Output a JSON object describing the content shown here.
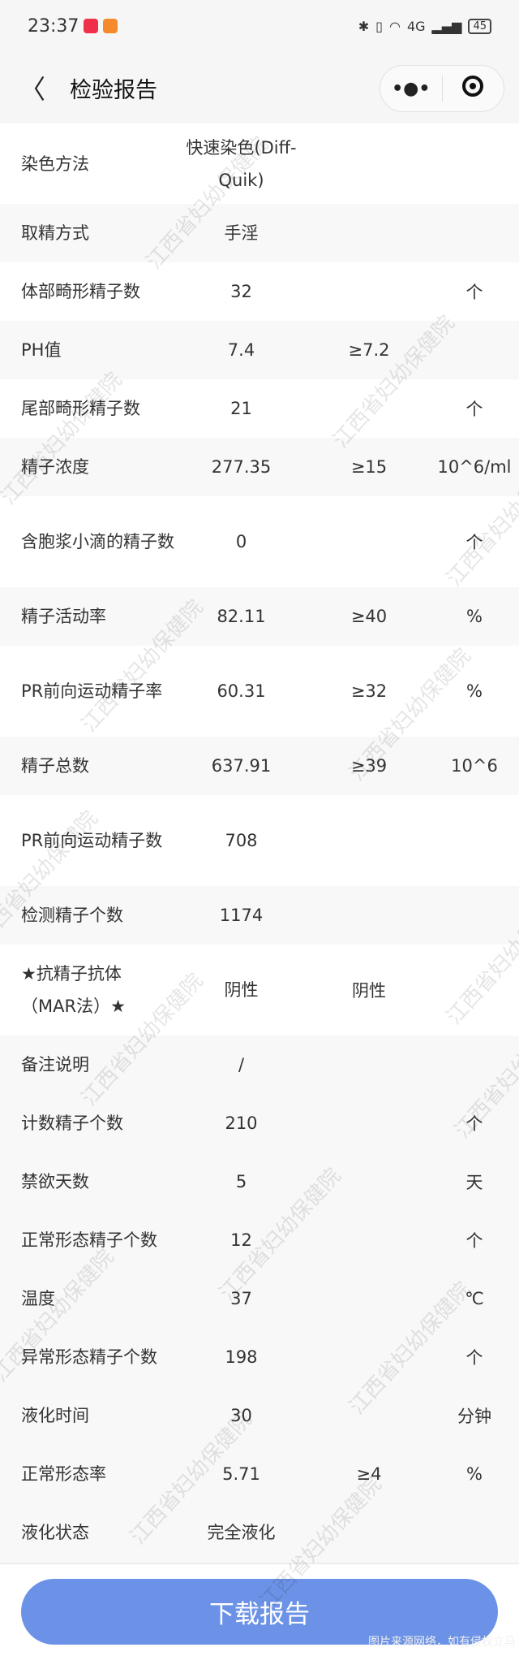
{
  "status_bar": {
    "time": "23:37",
    "battery": "45",
    "signal": "4G"
  },
  "nav": {
    "back_icon": "chevron-left-icon",
    "title": "检验报告",
    "more_icon": "more-dots-icon",
    "close_icon": "target-circle-icon"
  },
  "watermark": "江西省妇幼保健院",
  "rows": [
    {
      "name": "染色方法",
      "value": "快速染色(Diff-Quik)",
      "ref": "",
      "unit": ""
    },
    {
      "name": "取精方式",
      "value": "手淫",
      "ref": "",
      "unit": ""
    },
    {
      "name": "体部畸形精子数",
      "value": "32",
      "ref": "",
      "unit": "个"
    },
    {
      "name": "PH值",
      "value": "7.4",
      "ref": "≥7.2",
      "unit": ""
    },
    {
      "name": "尾部畸形精子数",
      "value": "21",
      "ref": "",
      "unit": "个"
    },
    {
      "name": "精子浓度",
      "value": "277.35",
      "ref": "≥15",
      "unit": "10^6/ml"
    },
    {
      "name": "含胞浆小滴的精子数",
      "value": "0",
      "ref": "",
      "unit": "个"
    },
    {
      "name": "精子活动率",
      "value": "82.11",
      "ref": "≥40",
      "unit": "%"
    },
    {
      "name": "PR前向运动精子率",
      "value": "60.31",
      "ref": "≥32",
      "unit": "%"
    },
    {
      "name": "精子总数",
      "value": "637.91",
      "ref": "≥39",
      "unit": "10^6"
    },
    {
      "name": "PR前向运动精子数",
      "value": "708",
      "ref": "",
      "unit": ""
    },
    {
      "name": "检测精子个数",
      "value": "1174",
      "ref": "",
      "unit": ""
    },
    {
      "name": "★抗精子抗体（MAR法）★",
      "value": "阴性",
      "ref": "阴性",
      "unit": ""
    },
    {
      "name": "备注说明",
      "value": "/",
      "ref": "",
      "unit": ""
    },
    {
      "name": "计数精子个数",
      "value": "210",
      "ref": "",
      "unit": "个"
    },
    {
      "name": "禁欲天数",
      "value": "5",
      "ref": "",
      "unit": "天"
    },
    {
      "name": "正常形态精子个数",
      "value": "12",
      "ref": "",
      "unit": "个"
    },
    {
      "name": "温度",
      "value": "37",
      "ref": "",
      "unit": "℃"
    },
    {
      "name": "异常形态精子个数",
      "value": "198",
      "ref": "",
      "unit": "个"
    },
    {
      "name": "液化时间",
      "value": "30",
      "ref": "",
      "unit": "分钟"
    },
    {
      "name": "正常形态率",
      "value": "5.71",
      "ref": "≥4",
      "unit": "%"
    },
    {
      "name": "液化状态",
      "value": "完全液化",
      "ref": "",
      "unit": ""
    }
  ],
  "download_button": "下载报告",
  "credit": "图片来源网络，如有侵权立马"
}
